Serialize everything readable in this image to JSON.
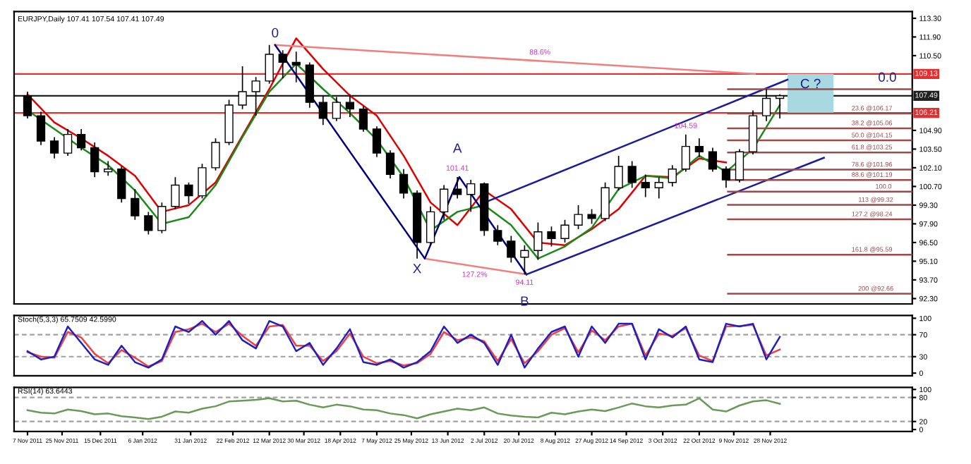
{
  "chart_data": [
    {
      "type": "candlestick",
      "title": "EURJPY,Daily 107.41 107.54 107.41 107.49",
      "x": [
        "2011-11-07",
        "2011-11-14",
        "2011-11-21",
        "2011-11-28",
        "2011-12-05",
        "2011-12-12",
        "2011-12-19",
        "2011-12-26",
        "2012-01-02",
        "2012-01-09",
        "2012-01-16",
        "2012-01-23",
        "2012-01-30",
        "2012-02-06",
        "2012-02-13",
        "2012-02-20",
        "2012-02-27",
        "2012-03-05",
        "2012-03-12",
        "2012-03-19",
        "2012-03-26",
        "2012-04-02",
        "2012-04-09",
        "2012-04-16",
        "2012-04-23",
        "2012-04-30",
        "2012-05-07",
        "2012-05-14",
        "2012-05-21",
        "2012-05-28",
        "2012-06-04",
        "2012-06-11",
        "2012-06-18",
        "2012-06-25",
        "2012-07-02",
        "2012-07-09",
        "2012-07-16",
        "2012-07-23",
        "2012-07-30",
        "2012-08-06",
        "2012-08-13",
        "2012-08-20",
        "2012-08-27",
        "2012-09-03",
        "2012-09-10",
        "2012-09-17",
        "2012-09-24",
        "2012-10-01",
        "2012-10-08",
        "2012-10-15",
        "2012-10-22",
        "2012-10-29",
        "2012-11-05",
        "2012-11-12",
        "2012-11-19",
        "2012-11-26",
        "2012-12-03"
      ],
      "ohlc": [
        [
          107.5,
          107.8,
          105.8,
          106.0
        ],
        [
          106.0,
          106.3,
          103.8,
          104.1
        ],
        [
          104.1,
          104.4,
          102.8,
          103.2
        ],
        [
          103.2,
          105.0,
          103.0,
          104.6
        ],
        [
          104.6,
          105.0,
          103.4,
          103.6
        ],
        [
          103.6,
          104.0,
          101.4,
          101.8
        ],
        [
          101.8,
          102.6,
          101.5,
          102.0
        ],
        [
          102.0,
          102.2,
          99.5,
          99.8
        ],
        [
          99.8,
          100.5,
          98.2,
          98.5
        ],
        [
          98.5,
          98.8,
          97.1,
          97.4
        ],
        [
          97.4,
          99.5,
          97.2,
          99.2
        ],
        [
          99.2,
          101.4,
          99.0,
          100.8
        ],
        [
          100.8,
          101.0,
          99.4,
          100.0
        ],
        [
          100.0,
          102.4,
          99.8,
          102.1
        ],
        [
          102.1,
          104.3,
          101.9,
          104.0
        ],
        [
          104.0,
          107.2,
          103.8,
          106.8
        ],
        [
          106.8,
          109.7,
          106.5,
          107.8
        ],
        [
          107.8,
          108.9,
          106.0,
          108.6
        ],
        [
          108.6,
          111.3,
          108.4,
          110.6
        ],
        [
          110.6,
          110.9,
          108.8,
          110.0
        ],
        [
          110.0,
          110.8,
          108.5,
          109.8
        ],
        [
          109.8,
          110.0,
          106.6,
          107.0
        ],
        [
          107.0,
          107.5,
          105.3,
          105.8
        ],
        [
          105.8,
          107.4,
          105.6,
          107.0
        ],
        [
          107.0,
          107.6,
          105.9,
          106.5
        ],
        [
          106.5,
          106.7,
          104.8,
          105.0
        ],
        [
          105.0,
          105.2,
          102.9,
          103.2
        ],
        [
          103.2,
          103.4,
          101.3,
          101.6
        ],
        [
          101.6,
          102.0,
          99.8,
          100.2
        ],
        [
          100.2,
          100.4,
          95.3,
          96.5
        ],
        [
          96.5,
          99.2,
          96.3,
          98.8
        ],
        [
          98.8,
          100.8,
          98.2,
          100.5
        ],
        [
          100.5,
          101.41,
          99.8,
          100.1
        ],
        [
          100.1,
          101.2,
          98.8,
          100.9
        ],
        [
          100.9,
          101.0,
          97.0,
          97.4
        ],
        [
          97.4,
          97.8,
          96.3,
          96.6
        ],
        [
          96.6,
          97.0,
          95.0,
          95.4
        ],
        [
          95.4,
          96.3,
          94.11,
          95.9
        ],
        [
          95.9,
          98.0,
          95.2,
          97.3
        ],
        [
          97.3,
          97.7,
          96.2,
          96.8
        ],
        [
          96.8,
          98.2,
          96.5,
          97.8
        ],
        [
          97.8,
          99.3,
          97.5,
          98.6
        ],
        [
          98.6,
          99.0,
          97.9,
          98.3
        ],
        [
          98.3,
          101.0,
          98.1,
          100.6
        ],
        [
          100.6,
          103.0,
          100.4,
          102.2
        ],
        [
          102.2,
          102.6,
          100.6,
          101.0
        ],
        [
          101.0,
          101.6,
          99.9,
          100.6
        ],
        [
          100.6,
          101.4,
          99.8,
          101.0
        ],
        [
          101.0,
          102.3,
          100.7,
          102.0
        ],
        [
          102.0,
          104.59,
          101.8,
          103.7
        ],
        [
          103.7,
          104.3,
          102.9,
          103.3
        ],
        [
          103.3,
          103.6,
          101.8,
          102.0
        ],
        [
          102.0,
          102.2,
          100.6,
          101.2
        ],
        [
          101.2,
          103.5,
          101.0,
          103.3
        ],
        [
          103.3,
          106.4,
          103.1,
          106.0
        ],
        [
          106.0,
          107.98,
          105.6,
          107.3
        ],
        [
          107.3,
          107.6,
          105.8,
          107.49
        ]
      ],
      "series": [
        {
          "type": "bar",
          "color": "#a8d8e0",
          "x": [
            "2012-12-19"
          ],
          "values": [
            2.92
          ],
          "base": [
            106.21
          ]
        },
        {
          "type": "line",
          "color": "#e00000",
          "x": [
            "2011-11-07",
            "2011-11-21",
            "2011-12-05",
            "2011-12-19",
            "2012-01-02",
            "2012-01-16",
            "2012-01-30",
            "2012-02-13",
            "2012-02-27",
            "2012-03-12",
            "2012-03-26",
            "2012-04-09",
            "2012-04-23",
            "2012-05-07",
            "2012-05-21",
            "2012-06-04",
            "2012-06-18",
            "2012-07-02",
            "2012-07-16",
            "2012-07-30",
            "2012-08-13",
            "2012-08-27",
            "2012-09-10",
            "2012-09-24",
            "2012-10-08",
            "2012-10-22",
            "2012-11-05"
          ],
          "values": [
            107.6,
            105.5,
            104.3,
            103.0,
            101.5,
            98.8,
            99.3,
            101.0,
            104.5,
            108.0,
            111.8,
            109.5,
            107.5,
            106.0,
            103.0,
            99.5,
            97.8,
            100.4,
            99.0,
            96.5,
            96.3,
            97.5,
            99.0,
            101.5,
            101.4,
            102.8,
            102.5
          ]
        },
        {
          "type": "line",
          "color": "#1a8a1a",
          "x": [
            "2011-11-07",
            "2011-11-21",
            "2011-12-05",
            "2011-12-19",
            "2012-01-02",
            "2012-01-16",
            "2012-01-30",
            "2012-02-13",
            "2012-02-27",
            "2012-03-12",
            "2012-03-26",
            "2012-04-09",
            "2012-04-23",
            "2012-05-07",
            "2012-05-21",
            "2012-06-04",
            "2012-06-18",
            "2012-07-02",
            "2012-07-16",
            "2012-07-30",
            "2012-08-13",
            "2012-08-27",
            "2012-09-10",
            "2012-09-24",
            "2012-10-08",
            "2012-10-22",
            "2012-11-05",
            "2012-11-19",
            "2012-12-03"
          ],
          "values": [
            106.4,
            105.0,
            103.6,
            102.3,
            100.4,
            97.9,
            98.4,
            100.8,
            104.4,
            107.8,
            109.9,
            108.0,
            106.2,
            104.2,
            101.4,
            97.4,
            98.8,
            99.3,
            97.8,
            95.3,
            96.2,
            97.6,
            100.5,
            101.5,
            101.3,
            103.0,
            101.8,
            103.5,
            106.8
          ]
        },
        {
          "type": "line",
          "color": "#f08080",
          "x": [
            "2012-03-15",
            "2012-11-20"
          ],
          "values": [
            111.3,
            109.13
          ]
        },
        {
          "type": "line",
          "color": "#f08080",
          "x": [
            "2012-06-01",
            "2012-07-24"
          ],
          "values": [
            95.3,
            94.11
          ]
        },
        {
          "type": "line",
          "color": "#000080",
          "x": [
            "2012-03-15",
            "2012-06-01",
            "2012-06-19",
            "2012-07-24"
          ],
          "values": [
            111.3,
            95.3,
            101.41,
            94.11
          ]
        },
        {
          "type": "line",
          "color": "#1c1c9c",
          "x": [
            "2012-07-04",
            "2012-12-07"
          ],
          "values": [
            99.6,
            108.7
          ]
        },
        {
          "type": "line",
          "color": "#1c1c9c",
          "x": [
            "2012-07-24",
            "2012-12-26"
          ],
          "values": [
            94.11,
            102.85
          ]
        },
        {
          "type": "line",
          "color": "#9c4a4a",
          "x": [
            "2012-11-06",
            "2013-02-10"
          ],
          "values": [
            107.98,
            107.98
          ]
        },
        {
          "type": "line",
          "color": "#9c4a4a",
          "x": [
            "2012-11-06",
            "2013-02-10"
          ],
          "values": [
            106.17,
            106.17
          ]
        },
        {
          "type": "line",
          "color": "#9c4a4a",
          "x": [
            "2012-11-06",
            "2013-02-10"
          ],
          "values": [
            105.06,
            105.06
          ]
        },
        {
          "type": "line",
          "color": "#9c4a4a",
          "x": [
            "2012-11-06",
            "2013-02-10"
          ],
          "values": [
            104.15,
            104.15
          ]
        },
        {
          "type": "line",
          "color": "#9c4a4a",
          "x": [
            "2012-11-06",
            "2013-02-10"
          ],
          "values": [
            103.25,
            103.25
          ]
        },
        {
          "type": "line",
          "color": "#9c4a4a",
          "x": [
            "2012-11-06",
            "2013-02-10"
          ],
          "values": [
            101.96,
            101.96
          ]
        },
        {
          "type": "line",
          "color": "#9c4a4a",
          "x": [
            "2012-11-06",
            "2013-02-10"
          ],
          "values": [
            101.19,
            101.19
          ]
        },
        {
          "type": "line",
          "color": "#9c4a4a",
          "x": [
            "2012-11-06",
            "2013-02-10"
          ],
          "values": [
            100.31,
            100.31
          ]
        },
        {
          "type": "line",
          "color": "#9c4a4a",
          "x": [
            "2012-11-06",
            "2013-02-10"
          ],
          "values": [
            99.32,
            99.32
          ]
        },
        {
          "type": "line",
          "color": "#9c4a4a",
          "x": [
            "2012-11-06",
            "2013-02-10"
          ],
          "values": [
            98.24,
            98.24
          ]
        },
        {
          "type": "line",
          "color": "#9c4a4a",
          "x": [
            "2012-11-06",
            "2013-02-10"
          ],
          "values": [
            95.59,
            95.59
          ]
        },
        {
          "type": "line",
          "color": "#9c4a4a",
          "x": [
            "2012-11-06",
            "2013-02-10"
          ],
          "values": [
            92.66,
            92.66
          ]
        }
      ],
      "ref_lines": [
        {
          "axis": "y",
          "value": 109.13,
          "label": "109.13",
          "color": "#e03030"
        },
        {
          "axis": "y",
          "value": 107.49,
          "label": "107.49",
          "color": "#202020"
        },
        {
          "axis": "y",
          "value": 106.21,
          "label": "106.21",
          "color": "#e03030"
        }
      ],
      "annotations": [
        {
          "text": "0",
          "x": "2012-03-15",
          "y": 111.3
        },
        {
          "text": "X",
          "x": "2012-05-28",
          "y": 95.3
        },
        {
          "text": "101.41",
          "x": "2012-06-18",
          "y": 101.41
        },
        {
          "text": "A",
          "x": "2012-06-18",
          "y": 101.41
        },
        {
          "text": "94.11",
          "x": "2012-07-23",
          "y": 94.11
        },
        {
          "text": "B",
          "x": "2012-07-23",
          "y": 94.11
        },
        {
          "text": "104.59",
          "x": "2012-10-15",
          "y": 104.59
        },
        {
          "text": "88.6%",
          "x": "2012-07-31",
          "y": 110.1
        },
        {
          "text": "127.2%",
          "x": "2012-06-27",
          "y": 94.7
        },
        {
          "text": "C ?",
          "x": "2012-12-19",
          "y": 107.49
        },
        {
          "text": "0.0",
          "x": "2013-01-28",
          "y": 107.98
        },
        {
          "text": "23.6 @106.17",
          "x": "2013-01-20",
          "y": 106.17
        },
        {
          "text": "38.2 @105.06",
          "x": "2013-01-20",
          "y": 105.06
        },
        {
          "text": "50.0 @104.15",
          "x": "2013-01-20",
          "y": 104.15
        },
        {
          "text": "61.8 @103.25",
          "x": "2013-01-20",
          "y": 103.25
        },
        {
          "text": "78.6 @101.96",
          "x": "2013-01-20",
          "y": 101.96
        },
        {
          "text": "88.6 @101.19",
          "x": "2013-01-20",
          "y": 101.19
        },
        {
          "text": "100.0",
          "x": "2013-01-26",
          "y": 100.31
        },
        {
          "text": "113 @99.32",
          "x": "2013-01-22",
          "y": 99.32
        },
        {
          "text": "127.2 @98.24",
          "x": "2013-01-20",
          "y": 98.24
        },
        {
          "text": "161.8 @95.59",
          "x": "2013-01-20",
          "y": 95.59
        },
        {
          "text": "200 @92.66",
          "x": "2013-01-22",
          "y": 92.66
        }
      ],
      "xlim": [
        "2011-10-31",
        "2013-02-10"
      ],
      "ylim": [
        91.9,
        113.8
      ],
      "yticks": [
        {
          "value": 113.3,
          "label": "113.30"
        },
        {
          "value": 111.9,
          "label": "111.90"
        },
        {
          "value": 110.5,
          "label": "110.50"
        },
        {
          "value": 104.9,
          "label": "104.90"
        },
        {
          "value": 103.5,
          "label": "103.50"
        },
        {
          "value": 102.1,
          "label": "102.10"
        },
        {
          "value": 100.7,
          "label": "100.70"
        },
        {
          "value": 99.3,
          "label": "99.30"
        },
        {
          "value": 97.9,
          "label": "97.90"
        },
        {
          "value": 96.5,
          "label": "96.50"
        },
        {
          "value": 95.1,
          "label": "95.10"
        },
        {
          "value": 93.7,
          "label": "93.70"
        },
        {
          "value": 92.3,
          "label": "92.30"
        }
      ],
      "tick_labels": "y"
    },
    {
      "type": "line",
      "title": "Stoch(5,3,3) 65.7509 42.5990",
      "x": [
        "2011-11-07",
        "2011-11-14",
        "2011-11-21",
        "2011-11-28",
        "2011-12-05",
        "2011-12-12",
        "2011-12-19",
        "2011-12-26",
        "2012-01-02",
        "2012-01-09",
        "2012-01-16",
        "2012-01-23",
        "2012-01-30",
        "2012-02-06",
        "2012-02-13",
        "2012-02-20",
        "2012-02-27",
        "2012-03-05",
        "2012-03-12",
        "2012-03-19",
        "2012-03-26",
        "2012-04-02",
        "2012-04-09",
        "2012-04-16",
        "2012-04-23",
        "2012-04-30",
        "2012-05-07",
        "2012-05-14",
        "2012-05-21",
        "2012-05-28",
        "2012-06-04",
        "2012-06-11",
        "2012-06-18",
        "2012-06-25",
        "2012-07-02",
        "2012-07-09",
        "2012-07-16",
        "2012-07-23",
        "2012-07-30",
        "2012-08-06",
        "2012-08-13",
        "2012-08-20",
        "2012-08-27",
        "2012-09-03",
        "2012-09-10",
        "2012-09-17",
        "2012-09-24",
        "2012-10-01",
        "2012-10-08",
        "2012-10-15",
        "2012-10-22",
        "2012-10-29",
        "2012-11-05",
        "2012-11-12",
        "2012-11-19",
        "2012-11-26",
        "2012-12-03"
      ],
      "series": [
        {
          "color": "#f04040",
          "values": [
            38,
            30,
            28,
            75,
            65,
            35,
            18,
            42,
            28,
            12,
            22,
            75,
            80,
            90,
            75,
            90,
            68,
            50,
            85,
            88,
            50,
            50,
            22,
            40,
            72,
            30,
            18,
            22,
            14,
            18,
            35,
            75,
            60,
            65,
            58,
            22,
            62,
            18,
            40,
            70,
            82,
            38,
            78,
            60,
            85,
            90,
            32,
            72,
            68,
            82,
            32,
            22,
            85,
            86,
            88,
            32,
            43
          ]
        },
        {
          "color": "#2020c0",
          "values": [
            40,
            25,
            30,
            85,
            55,
            25,
            15,
            50,
            20,
            10,
            25,
            85,
            75,
            95,
            70,
            95,
            60,
            45,
            95,
            85,
            40,
            55,
            15,
            45,
            80,
            20,
            15,
            25,
            10,
            20,
            40,
            85,
            55,
            70,
            55,
            15,
            70,
            10,
            45,
            75,
            85,
            30,
            85,
            55,
            90,
            90,
            25,
            80,
            65,
            85,
            25,
            20,
            90,
            85,
            90,
            25,
            66
          ]
        }
      ],
      "ref_lines": [
        {
          "axis": "y",
          "value": 30,
          "color": "#a0a0a0",
          "line_style": "dashed"
        },
        {
          "axis": "y",
          "value": 70,
          "color": "#a0a0a0",
          "line_style": "dashed"
        }
      ],
      "xlim": [
        "2011-10-31",
        "2013-02-10"
      ],
      "ylim": [
        -5,
        105
      ],
      "yticks": [
        0,
        30,
        70,
        100
      ],
      "tick_labels": "y"
    },
    {
      "type": "line",
      "title": "RSI(14) 63.6443",
      "x": [
        "2011-11-07",
        "2011-11-14",
        "2011-11-21",
        "2011-11-28",
        "2011-12-05",
        "2011-12-12",
        "2011-12-19",
        "2011-12-26",
        "2012-01-02",
        "2012-01-09",
        "2012-01-16",
        "2012-01-23",
        "2012-01-30",
        "2012-02-06",
        "2012-02-13",
        "2012-02-20",
        "2012-02-27",
        "2012-03-05",
        "2012-03-12",
        "2012-03-19",
        "2012-03-26",
        "2012-04-02",
        "2012-04-09",
        "2012-04-16",
        "2012-04-23",
        "2012-04-30",
        "2012-05-07",
        "2012-05-14",
        "2012-05-21",
        "2012-05-28",
        "2012-06-04",
        "2012-06-11",
        "2012-06-18",
        "2012-06-25",
        "2012-07-02",
        "2012-07-09",
        "2012-07-16",
        "2012-07-23",
        "2012-07-30",
        "2012-08-06",
        "2012-08-13",
        "2012-08-20",
        "2012-08-27",
        "2012-09-03",
        "2012-09-10",
        "2012-09-17",
        "2012-09-24",
        "2012-10-01",
        "2012-10-08",
        "2012-10-15",
        "2012-10-22",
        "2012-10-29",
        "2012-11-05",
        "2012-11-12",
        "2012-11-19",
        "2012-11-26",
        "2012-12-03"
      ],
      "series": [
        {
          "color": "#6a9a5a",
          "values": [
            48,
            42,
            40,
            50,
            46,
            38,
            40,
            33,
            30,
            26,
            32,
            45,
            42,
            52,
            58,
            70,
            72,
            74,
            78,
            70,
            72,
            62,
            55,
            62,
            58,
            50,
            48,
            40,
            36,
            28,
            38,
            45,
            52,
            48,
            55,
            40,
            35,
            32,
            30,
            42,
            38,
            45,
            50,
            46,
            55,
            65,
            58,
            55,
            60,
            62,
            78,
            50,
            45,
            60,
            70,
            73,
            64
          ]
        }
      ],
      "ref_lines": [
        {
          "axis": "y",
          "value": 20,
          "color": "#a0a0a0",
          "line_style": "dashed"
        },
        {
          "axis": "y",
          "value": 80,
          "color": "#a0a0a0",
          "line_style": "dashed"
        }
      ],
      "xlim": [
        "2011-10-31",
        "2013-02-10"
      ],
      "ylim": [
        -5,
        105
      ],
      "yticks": [
        0,
        20,
        80,
        100
      ],
      "xticks": [
        {
          "value": "2011-11-07",
          "label": "7 Nov 2011"
        },
        {
          "value": "2011-11-25",
          "label": "25 Nov 2011"
        },
        {
          "value": "2011-12-15",
          "label": "15 Dec 2011"
        },
        {
          "value": "2012-01-06",
          "label": "6 Jan 2012"
        },
        {
          "value": "2012-01-31",
          "label": "31 Jan 2012"
        },
        {
          "value": "2012-02-22",
          "label": "22 Feb 2012"
        },
        {
          "value": "2012-03-12",
          "label": "12 Mar 2012"
        },
        {
          "value": "2012-03-30",
          "label": "30 Mar 2012"
        },
        {
          "value": "2012-04-18",
          "label": "18 Apr 2012"
        },
        {
          "value": "2012-05-07",
          "label": "7 May 2012"
        },
        {
          "value": "2012-05-25",
          "label": "25 May 2012"
        },
        {
          "value": "2012-06-13",
          "label": "13 Jun 2012"
        },
        {
          "value": "2012-07-02",
          "label": "2 Jul 2012"
        },
        {
          "value": "2012-07-20",
          "label": "20 Jul 2012"
        },
        {
          "value": "2012-08-08",
          "label": "8 Aug 2012"
        },
        {
          "value": "2012-08-27",
          "label": "27 Aug 2012"
        },
        {
          "value": "2012-09-14",
          "label": "14 Sep 2012"
        },
        {
          "value": "2012-10-03",
          "label": "3 Oct 2012"
        },
        {
          "value": "2012-10-22",
          "label": "22 Oct 2012"
        },
        {
          "value": "2012-11-09",
          "label": "9 Nov 2012"
        },
        {
          "value": "2012-11-28",
          "label": "28 Nov 2012"
        }
      ]
    }
  ]
}
